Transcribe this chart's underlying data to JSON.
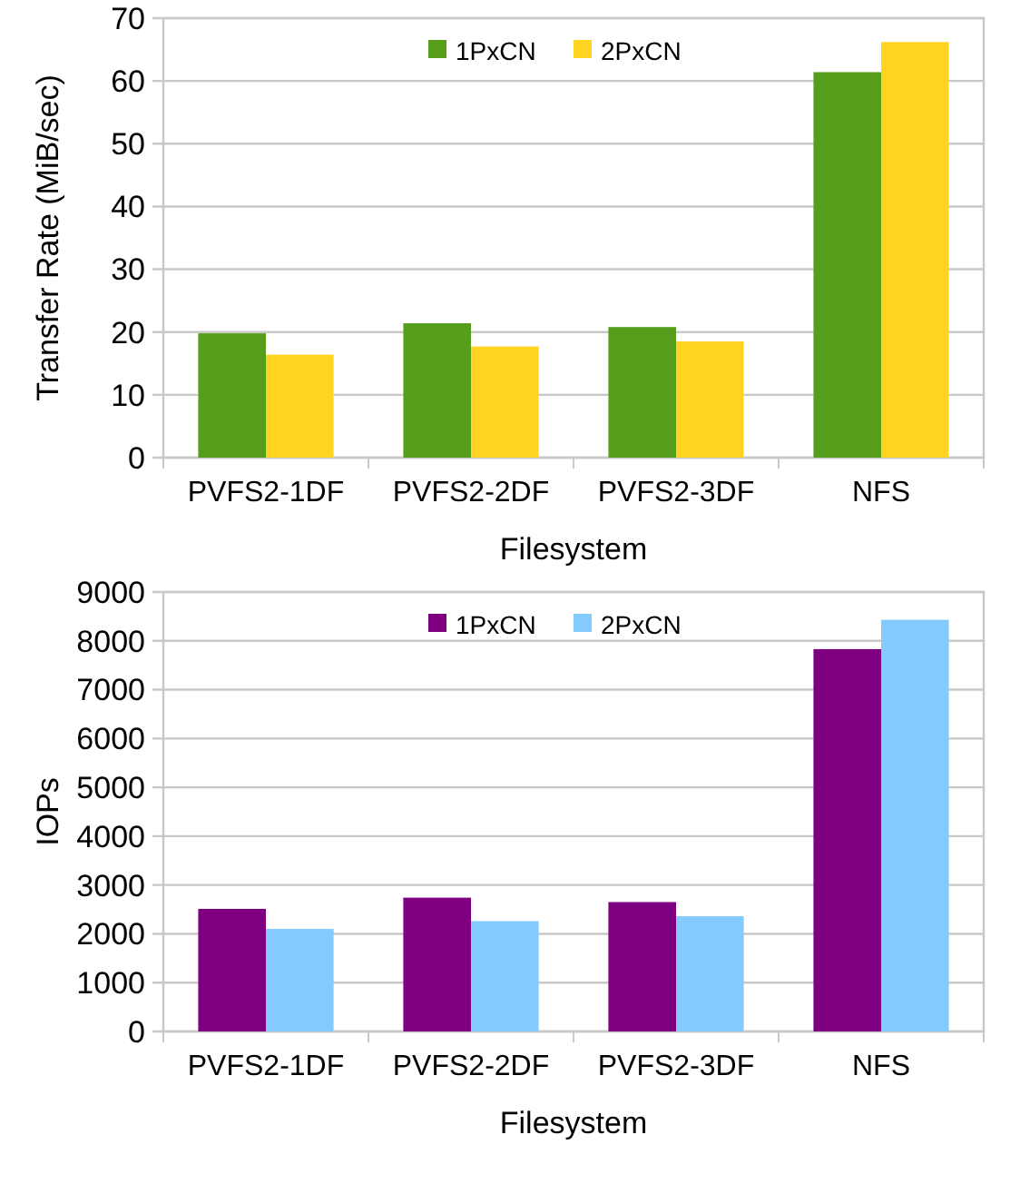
{
  "chart_data": [
    {
      "type": "bar",
      "xlabel": "Filesystem",
      "ylabel": "Transfer Rate (MiB/sec)",
      "categories": [
        "PVFS2-1DF",
        "PVFS2-2DF",
        "PVFS2-3DF",
        "NFS"
      ],
      "series": [
        {
          "name": "1PxCN",
          "color": "#579d1c",
          "values": [
            19.8,
            21.4,
            20.8,
            61.4
          ]
        },
        {
          "name": "2PxCN",
          "color": "#ffd320",
          "values": [
            16.4,
            17.7,
            18.5,
            66.2
          ]
        }
      ],
      "ylim": [
        0,
        70
      ],
      "yticks": [
        0,
        10,
        20,
        30,
        40,
        50,
        60,
        70
      ],
      "grid": "y",
      "legend": "top"
    },
    {
      "type": "bar",
      "xlabel": "Filesystem",
      "ylabel": "IOPs",
      "categories": [
        "PVFS2-1DF",
        "PVFS2-2DF",
        "PVFS2-3DF",
        "NFS"
      ],
      "series": [
        {
          "name": "1PxCN",
          "color": "#7e0080",
          "values": [
            2510,
            2740,
            2650,
            7830
          ]
        },
        {
          "name": "2PxCN",
          "color": "#83caff",
          "values": [
            2100,
            2260,
            2360,
            8430
          ]
        }
      ],
      "ylim": [
        0,
        9000
      ],
      "yticks": [
        0,
        1000,
        2000,
        3000,
        4000,
        5000,
        6000,
        7000,
        8000,
        9000
      ],
      "grid": "y",
      "legend": "top"
    }
  ]
}
